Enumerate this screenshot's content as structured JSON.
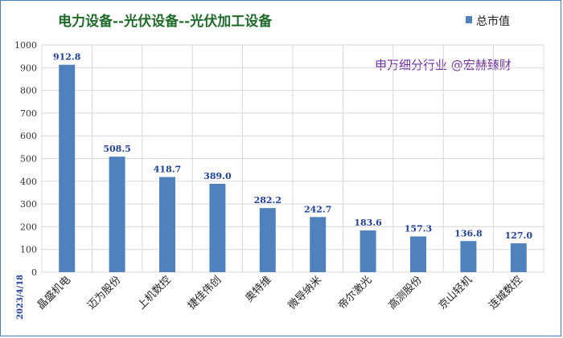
{
  "chart_data": {
    "type": "bar",
    "title": "电力设备--光伏设备--光伏加工设备",
    "legend": {
      "label": "总市值",
      "color": "#4f81bd",
      "placement": "top-right"
    },
    "watermark": "申万细分行业 @宏赫臻财",
    "date_label": "2023/4/18",
    "categories": [
      "晶盛机电",
      "迈为股份",
      "上机数控",
      "捷佳伟创",
      "奥特维",
      "微导纳米",
      "帝尔激光",
      "高测股份",
      "京山轻机",
      "连城数控"
    ],
    "values": [
      912.8,
      508.5,
      418.7,
      389.0,
      282.2,
      242.7,
      183.6,
      157.3,
      136.8,
      127.0
    ],
    "value_labels": [
      "912.8",
      "508.5",
      "418.7",
      "389.0",
      "282.2",
      "242.7",
      "183.6",
      "157.3",
      "136.8",
      "127.0"
    ],
    "ylim": [
      0,
      1000
    ],
    "yticks": [
      0,
      100,
      200,
      300,
      400,
      500,
      600,
      700,
      800,
      900,
      1000
    ],
    "grid": true,
    "bar_color": "#4f81bd"
  }
}
